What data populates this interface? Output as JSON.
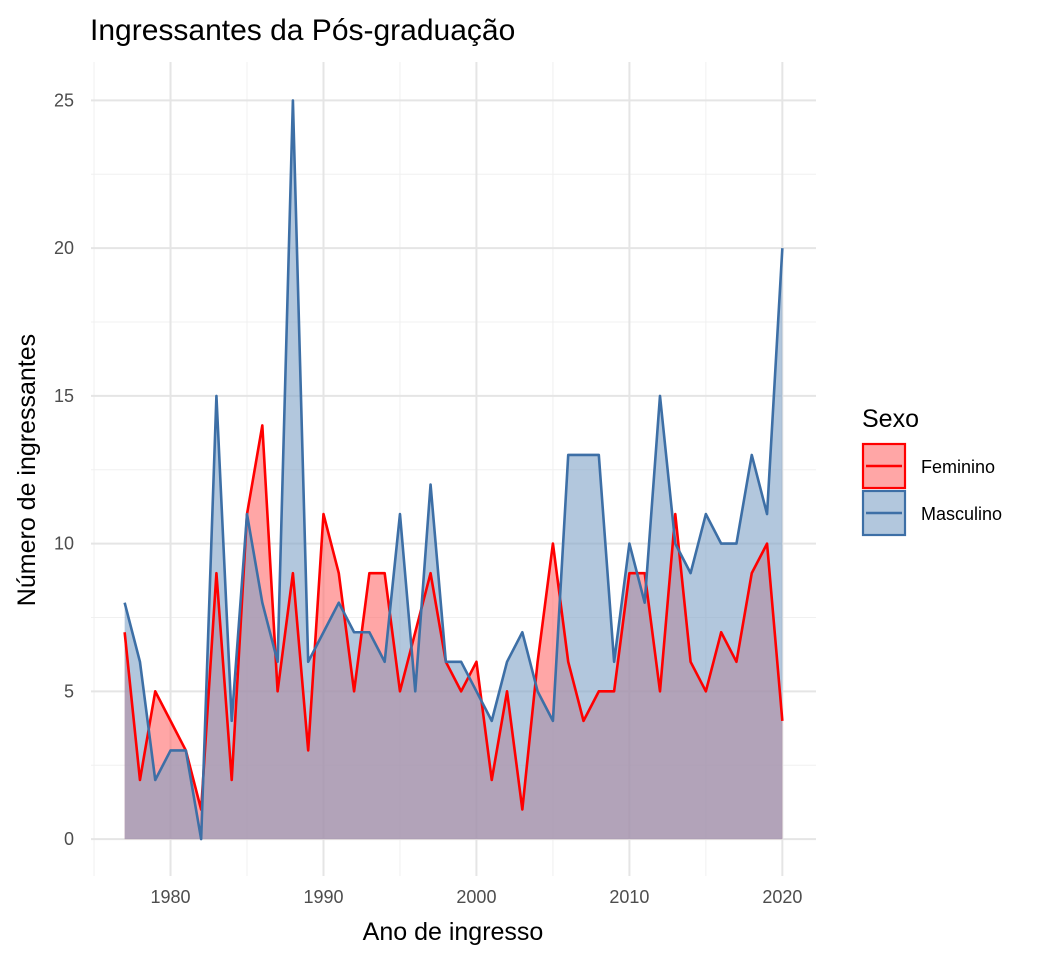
{
  "chart_data": {
    "type": "area",
    "title": "Ingressantes da Pós-graduação",
    "xlabel": "Ano de ingresso",
    "ylabel": "Número de ingressantes",
    "xlim": [
      1974.8,
      2022.2
    ],
    "ylim": [
      -1.25,
      26.3
    ],
    "x_ticks": [
      1980,
      1990,
      2000,
      2010,
      2020
    ],
    "y_ticks": [
      0,
      5,
      10,
      15,
      20,
      25
    ],
    "grid": true,
    "legend": {
      "title": "Sexo",
      "position": "right"
    },
    "x": [
      1977,
      1978,
      1979,
      1980,
      1981,
      1982,
      1983,
      1984,
      1985,
      1986,
      1987,
      1988,
      1989,
      1990,
      1991,
      1992,
      1993,
      1994,
      1995,
      1996,
      1997,
      1998,
      1999,
      2000,
      2001,
      2002,
      2003,
      2004,
      2005,
      2006,
      2007,
      2008,
      2009,
      2010,
      2011,
      2012,
      2013,
      2014,
      2015,
      2016,
      2017,
      2018,
      2019,
      2020
    ],
    "series": [
      {
        "name": "Feminino",
        "color": "#ff0000",
        "fill": "#ff6b6b",
        "values": [
          7,
          2,
          5,
          4,
          3,
          1,
          9,
          2,
          11,
          14,
          5,
          9,
          3,
          11,
          9,
          5,
          9,
          9,
          5,
          7,
          9,
          6,
          5,
          6,
          2,
          5,
          1,
          6,
          10,
          6,
          4,
          5,
          5,
          9,
          9,
          5,
          11,
          6,
          5,
          7,
          6,
          9,
          10,
          4
        ]
      },
      {
        "name": "Masculino",
        "color": "#3d6fa6",
        "fill": "#7ea1c6",
        "values": [
          8,
          6,
          2,
          3,
          3,
          0,
          15,
          4,
          11,
          8,
          6,
          25,
          6,
          7,
          8,
          7,
          7,
          6,
          11,
          5,
          12,
          6,
          6,
          5,
          4,
          6,
          7,
          5,
          4,
          13,
          13,
          13,
          6,
          10,
          8,
          15,
          10,
          9,
          11,
          10,
          10,
          13,
          11,
          20
        ]
      }
    ]
  }
}
